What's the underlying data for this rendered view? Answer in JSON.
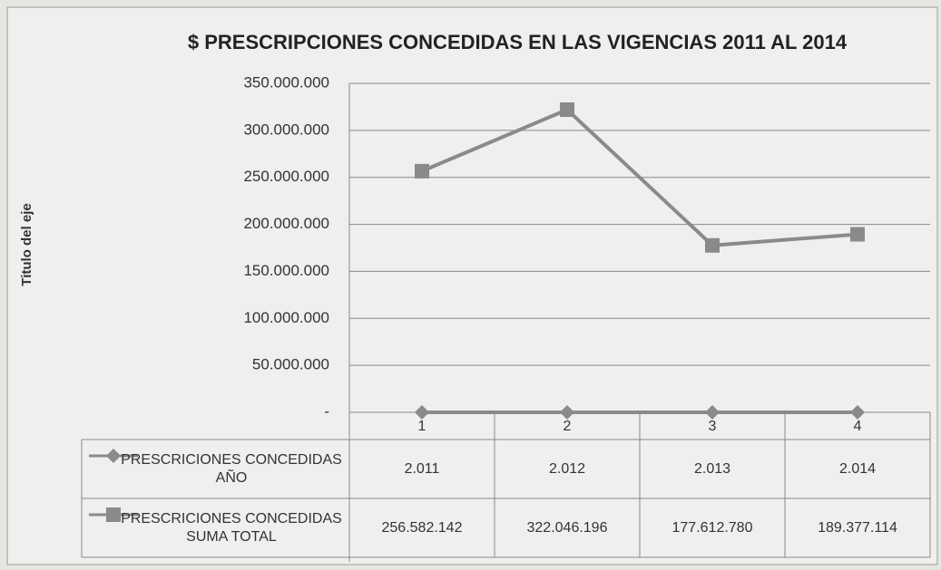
{
  "chart_data": {
    "type": "line",
    "title": "$ PRESCRIPCIONES  CONCEDIDAS EN LAS VIGENCIAS 2011 AL 2014",
    "y_axis_label": "Titulo del eje",
    "categories": [
      "1",
      "2",
      "3",
      "4"
    ],
    "series": [
      {
        "name": "PRESCRICIONES CONCEDIDAS AÑO",
        "color": "#8a8a8a",
        "marker": "diamond",
        "values": [
          2011,
          2012,
          2013,
          2014
        ],
        "value_labels": [
          "2.011",
          "2.012",
          "2.013",
          "2.014"
        ]
      },
      {
        "name": "PRESCRICIONES CONCEDIDAS SUMA TOTAL",
        "color": "#8a8a8a",
        "marker": "square",
        "values": [
          256582142,
          322046196,
          177612780,
          189377114
        ],
        "value_labels": [
          "256.582.142",
          "322.046.196",
          "177.612.780",
          "189.377.114"
        ]
      }
    ],
    "ylim": [
      0,
      350000000
    ],
    "yticks": [
      {
        "value": 0,
        "label": "-"
      },
      {
        "value": 50000000,
        "label": "50.000.000"
      },
      {
        "value": 100000000,
        "label": "100.000.000"
      },
      {
        "value": 150000000,
        "label": "150.000.000"
      },
      {
        "value": 200000000,
        "label": "200.000.000"
      },
      {
        "value": 250000000,
        "label": "250.000.000"
      },
      {
        "value": 300000000,
        "label": "300.000.000"
      },
      {
        "value": 350000000,
        "label": "350.000.000"
      }
    ],
    "grid": true
  }
}
